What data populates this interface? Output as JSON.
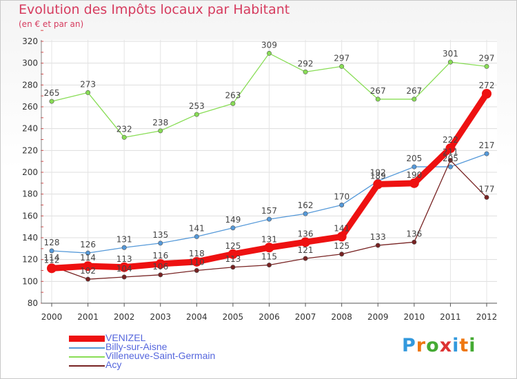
{
  "title": "Evolution des Impôts locaux par Habitant",
  "subtitle": "(en € et par an)",
  "logo": "Proxiti",
  "chart_data": {
    "type": "line",
    "title": "Evolution des Impôts locaux par Habitant",
    "subtitle": "(en € et par an)",
    "xlabel": "",
    "ylabel": "",
    "x": [
      "2000",
      "2001",
      "2002",
      "2003",
      "2004",
      "2005",
      "2006",
      "2007",
      "2008",
      "2009",
      "2010",
      "2011",
      "2012"
    ],
    "ylim": [
      80,
      320
    ],
    "yticks": [
      80,
      100,
      120,
      140,
      160,
      180,
      200,
      220,
      240,
      260,
      280,
      300,
      320
    ],
    "grid": true,
    "legend_position": "bottom-left",
    "series": [
      {
        "name": "Villeneuve-Saint-Germain",
        "color": "#88dd55",
        "values": [
          265,
          273,
          232,
          238,
          253,
          263,
          309,
          292,
          297,
          267,
          267,
          301,
          297
        ]
      },
      {
        "name": "Billy-sur-Aisne",
        "color": "#5599d9",
        "values": [
          128,
          126,
          131,
          135,
          141,
          149,
          157,
          162,
          170,
          192,
          205,
          205,
          217
        ]
      },
      {
        "name": "Acy",
        "color": "#772222",
        "values": [
          114,
          102,
          104,
          106,
          110,
          113,
          115,
          121,
          125,
          133,
          136,
          211,
          177
        ]
      },
      {
        "name": "VENIZEL",
        "color": "#ee1111",
        "values": [
          112,
          114,
          113,
          116,
          118,
          125,
          131,
          136,
          141,
          189,
          190,
          222,
          272
        ]
      }
    ]
  },
  "legend": [
    {
      "name": "VENIZEL",
      "color": "#ee1111"
    },
    {
      "name": "Billy-sur-Aisne",
      "color": "#5599d9"
    },
    {
      "name": "Villeneuve-Saint-Germain",
      "color": "#88dd55"
    },
    {
      "name": "Acy",
      "color": "#772222"
    }
  ]
}
